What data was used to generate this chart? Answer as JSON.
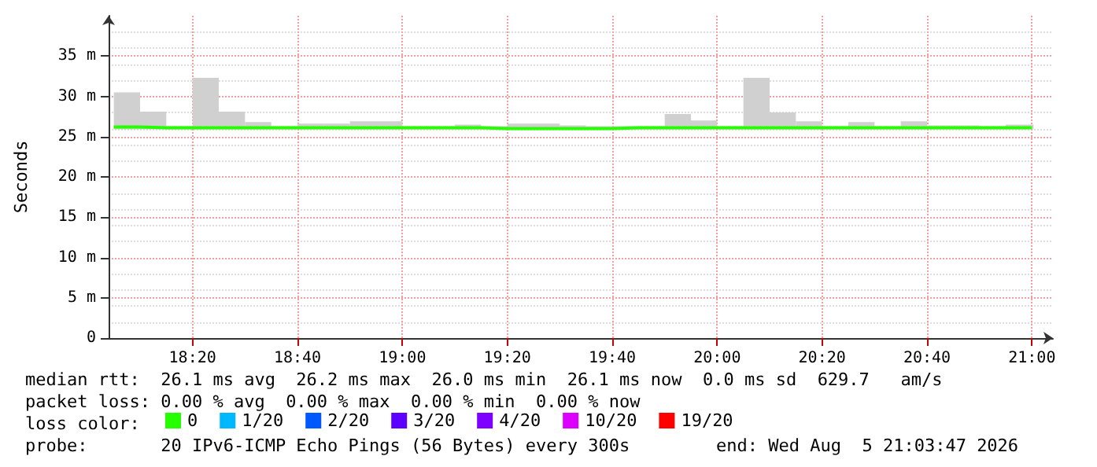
{
  "chart_data": {
    "type": "step",
    "ylabel": "Seconds",
    "legend_title": "loss color:",
    "x": [
      "2026-08-05T18:05",
      "2026-08-05T18:10",
      "2026-08-05T18:15",
      "2026-08-05T18:20",
      "2026-08-05T18:25",
      "2026-08-05T18:30",
      "2026-08-05T18:35",
      "2026-08-05T18:40",
      "2026-08-05T18:45",
      "2026-08-05T18:50",
      "2026-08-05T18:55",
      "2026-08-05T19:00",
      "2026-08-05T19:05",
      "2026-08-05T19:10",
      "2026-08-05T19:15",
      "2026-08-05T19:20",
      "2026-08-05T19:25",
      "2026-08-05T19:30",
      "2026-08-05T19:35",
      "2026-08-05T19:40",
      "2026-08-05T19:45",
      "2026-08-05T19:50",
      "2026-08-05T19:55",
      "2026-08-05T20:00",
      "2026-08-05T20:05",
      "2026-08-05T20:10",
      "2026-08-05T20:15",
      "2026-08-05T20:20",
      "2026-08-05T20:25",
      "2026-08-05T20:30",
      "2026-08-05T20:35",
      "2026-08-05T20:40",
      "2026-08-05T20:45",
      "2026-08-05T20:50",
      "2026-08-05T20:55",
      "2026-08-05T21:00"
    ],
    "series": [
      {
        "name": "0",
        "color": "#26ff00",
        "values": [
          26.2,
          26.1,
          26.1,
          26.1,
          26.1,
          26.1,
          26.1,
          26.1,
          26.1,
          26.1,
          26.1,
          26.1,
          26.1,
          26.1,
          26.0,
          26.0,
          26.0,
          26.0,
          26.0,
          26.1,
          26.1,
          26.1,
          26.1,
          26.1,
          26.1,
          26.1,
          26.1,
          26.1,
          26.1,
          26.1,
          26.1,
          26.1,
          26.1,
          26.1,
          26.1,
          26.1
        ],
        "lower": [
          25.9,
          25.9,
          25.9,
          25.9,
          25.9,
          25.9,
          25.9,
          25.9,
          25.9,
          25.9,
          25.9,
          25.9,
          25.9,
          25.9,
          25.9,
          25.9,
          25.9,
          25.9,
          25.9,
          25.9,
          25.9,
          25.9,
          25.9,
          25.9,
          25.9,
          25.9,
          25.9,
          25.9,
          25.9,
          25.9,
          25.9,
          25.9,
          25.9,
          25.9,
          25.9,
          25.9
        ],
        "upper": [
          30.5,
          28.1,
          26.3,
          32.3,
          28.1,
          26.8,
          26.3,
          26.6,
          26.6,
          26.9,
          26.9,
          26.3,
          26.3,
          26.5,
          26.3,
          26.6,
          26.6,
          26.4,
          26.3,
          26.3,
          26.3,
          27.8,
          27.0,
          26.3,
          32.3,
          28.0,
          26.9,
          26.3,
          26.8,
          26.3,
          26.9,
          26.4,
          26.4,
          26.3,
          26.5,
          26.5
        ]
      },
      {
        "name": "1/20",
        "color": "#00b8ff",
        "values": [
          null,
          null,
          null,
          null,
          null,
          null,
          null,
          null,
          null,
          null,
          null,
          null,
          null,
          null,
          null,
          null,
          null,
          null,
          null,
          null,
          null,
          null,
          null,
          null,
          null,
          null,
          null,
          null,
          null,
          null,
          null,
          null,
          null,
          null,
          null,
          null
        ]
      },
      {
        "name": "2/20",
        "color": "#0059ff",
        "values": [
          null,
          null,
          null,
          null,
          null,
          null,
          null,
          null,
          null,
          null,
          null,
          null,
          null,
          null,
          null,
          null,
          null,
          null,
          null,
          null,
          null,
          null,
          null,
          null,
          null,
          null,
          null,
          null,
          null,
          null,
          null,
          null,
          null,
          null,
          null,
          null
        ]
      },
      {
        "name": "3/20",
        "color": "#5e00ff",
        "values": [
          null,
          null,
          null,
          null,
          null,
          null,
          null,
          null,
          null,
          null,
          null,
          null,
          null,
          null,
          null,
          null,
          null,
          null,
          null,
          null,
          null,
          null,
          null,
          null,
          null,
          null,
          null,
          null,
          null,
          null,
          null,
          null,
          null,
          null,
          null,
          null
        ]
      },
      {
        "name": "4/20",
        "color": "#7e00ff",
        "values": [
          null,
          null,
          null,
          null,
          null,
          null,
          null,
          null,
          null,
          null,
          null,
          null,
          null,
          null,
          null,
          null,
          null,
          null,
          null,
          null,
          null,
          null,
          null,
          null,
          null,
          null,
          null,
          null,
          null,
          null,
          null,
          null,
          null,
          null,
          null,
          null
        ]
      },
      {
        "name": "10/20",
        "color": "#dd00ff",
        "values": [
          null,
          null,
          null,
          null,
          null,
          null,
          null,
          null,
          null,
          null,
          null,
          null,
          null,
          null,
          null,
          null,
          null,
          null,
          null,
          null,
          null,
          null,
          null,
          null,
          null,
          null,
          null,
          null,
          null,
          null,
          null,
          null,
          null,
          null,
          null,
          null
        ]
      },
      {
        "name": "19/20",
        "color": "#ff0000",
        "values": [
          null,
          null,
          null,
          null,
          null,
          null,
          null,
          null,
          null,
          null,
          null,
          null,
          null,
          null,
          null,
          null,
          null,
          null,
          null,
          null,
          null,
          null,
          null,
          null,
          null,
          null,
          null,
          null,
          null,
          null,
          null,
          null,
          null,
          null,
          null,
          null
        ]
      }
    ],
    "xlim": [
      "2026-08-05T18:04",
      "2026-08-05T21:04"
    ],
    "xticks": [
      {
        "value": "2026-08-05T18:20",
        "label": "18:20"
      },
      {
        "value": "2026-08-05T18:40",
        "label": "18:40"
      },
      {
        "value": "2026-08-05T19:00",
        "label": "19:00"
      },
      {
        "value": "2026-08-05T19:20",
        "label": "19:20"
      },
      {
        "value": "2026-08-05T19:40",
        "label": "19:40"
      },
      {
        "value": "2026-08-05T20:00",
        "label": "20:00"
      },
      {
        "value": "2026-08-05T20:20",
        "label": "20:20"
      },
      {
        "value": "2026-08-05T20:40",
        "label": "20:40"
      },
      {
        "value": "2026-08-05T21:00",
        "label": "21:00"
      }
    ],
    "ylim": [
      0,
      40
    ],
    "yticks": [
      0,
      {
        "value": 5,
        "label": "5 m"
      },
      {
        "value": 10,
        "label": "10 m"
      },
      {
        "value": 15,
        "label": "15 m"
      },
      {
        "value": 20,
        "label": "20 m"
      },
      {
        "value": 25,
        "label": "25 m"
      },
      {
        "value": 30,
        "label": "30 m"
      },
      {
        "value": 35,
        "label": "35 m"
      }
    ],
    "grid": true,
    "legend": "bottom",
    "marker": "none",
    "line_style": "solid",
    "annotations": [
      "median rtt:  26.1 ms avg  26.2 ms max  26.0 ms min  26.1 ms now  0.0 ms sd  629.7   am/s",
      "packet loss: 0.00 % avg  0.00 % max  0.00 % min  0.00 % now",
      "probe:       20 IPv6-ICMP Echo Pings (56 Bytes) every 300s",
      "end: Wed Aug  5 21:03:47 2026"
    ]
  }
}
